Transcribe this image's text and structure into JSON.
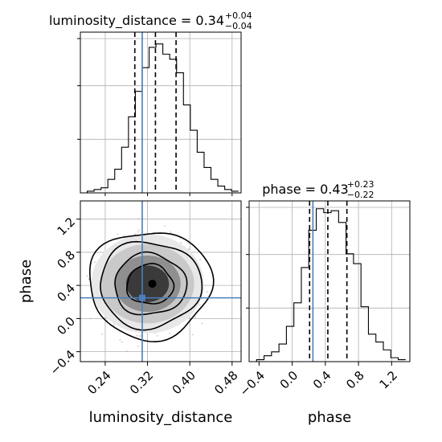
{
  "chart_data": {
    "type": "corner",
    "parameters": [
      {
        "name": "luminosity_distance",
        "xlabel": "luminosity_distance",
        "title": {
          "base": "luminosity_distance = 0.34",
          "plus": "+0.04",
          "minus": "−0.04"
        },
        "range": [
          0.193,
          0.497
        ],
        "ticks": [
          0.24,
          0.32,
          0.4,
          0.48
        ],
        "tick_labels": [
          "0.24",
          "0.32",
          "0.40",
          "0.48"
        ],
        "quantiles": [
          0.296,
          0.335,
          0.374
        ],
        "truth": 0.31,
        "hist": {
          "bin_edges": [
            0.193,
            0.206,
            0.219,
            0.232,
            0.245,
            0.258,
            0.271,
            0.284,
            0.297,
            0.31,
            0.323,
            0.336,
            0.349,
            0.362,
            0.375,
            0.388,
            0.401,
            0.414,
            0.427,
            0.44,
            0.453,
            0.466,
            0.479,
            0.492
          ],
          "counts": [
            0,
            1,
            2,
            3,
            8,
            14,
            27,
            45,
            60,
            74,
            86,
            88,
            82,
            79,
            71,
            52,
            37,
            24,
            15,
            8,
            4,
            2,
            1
          ],
          "ymax": 95
        }
      },
      {
        "name": "phase",
        "xlabel": "phase",
        "ylabel": "phase",
        "title": {
          "base": "phase = 0.43",
          "plus": "+0.23",
          "minus": "−0.22"
        },
        "range": [
          -0.52,
          1.42
        ],
        "ticks": [
          -0.4,
          0.0,
          0.4,
          0.8,
          1.2
        ],
        "tick_labels": [
          "−0.4",
          "0.0",
          "0.4",
          "0.8",
          "1.2"
        ],
        "quantiles": [
          0.21,
          0.43,
          0.66
        ],
        "truth": 0.25,
        "hist": {
          "bin_edges": [
            -0.52,
            -0.43,
            -0.34,
            -0.25,
            -0.16,
            -0.07,
            0.02,
            0.11,
            0.2,
            0.29,
            0.38,
            0.47,
            0.56,
            0.65,
            0.74,
            0.83,
            0.92,
            1.01,
            1.1,
            1.19,
            1.28,
            1.37
          ],
          "counts": [
            0,
            1,
            3,
            5,
            9,
            18,
            30,
            48,
            67,
            78,
            76,
            77,
            71,
            55,
            50,
            28,
            14,
            10,
            6,
            2,
            1
          ],
          "ymax": 82
        }
      }
    ],
    "joint": {
      "x": "luminosity_distance",
      "y": "phase",
      "center": [
        0.32,
        0.42
      ],
      "contour_levels": [
        {
          "rx": 0.044,
          "ry": 0.24
        },
        {
          "rx": 0.068,
          "ry": 0.37
        },
        {
          "rx": 0.096,
          "ry": 0.52
        },
        {
          "rx": 0.116,
          "ry": 0.65
        }
      ]
    },
    "truth_color": "#4a7ebb",
    "grid": true
  }
}
